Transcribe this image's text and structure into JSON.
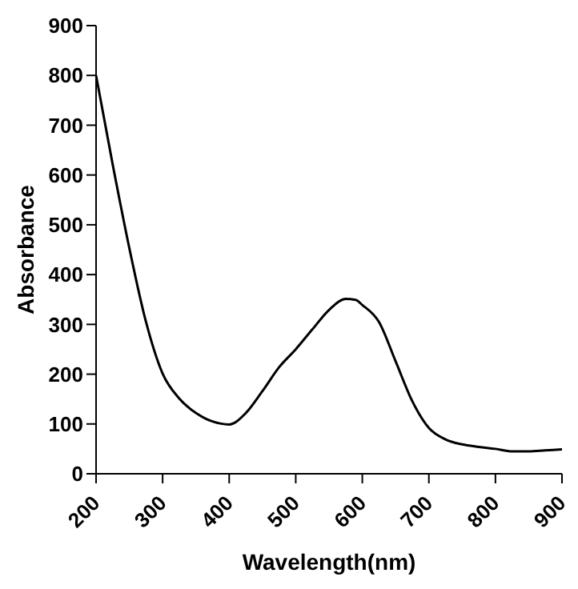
{
  "chart_data": {
    "type": "line",
    "xlabel": "Wavelength(nm)",
    "ylabel": "Absorbance",
    "x": [
      200,
      225,
      250,
      275,
      300,
      325,
      350,
      375,
      400,
      425,
      450,
      475,
      500,
      525,
      550,
      575,
      590,
      600,
      625,
      650,
      675,
      700,
      725,
      750,
      775,
      800,
      825,
      850,
      875,
      900
    ],
    "series": [
      {
        "color": "#000000",
        "values": [
          800,
          621,
          453,
          305,
          201,
          151,
          122,
          105,
          99,
          122,
          166,
          214,
          250,
          290,
          329,
          351,
          349,
          339,
          305,
          226,
          146,
          92,
          69,
          59,
          54,
          50,
          45,
          45,
          47,
          49
        ]
      }
    ],
    "xlim": [
      200,
      900
    ],
    "xticks": [
      200,
      300,
      400,
      500,
      600,
      700,
      800,
      900
    ],
    "ylim": [
      0,
      900
    ],
    "yticks": [
      0,
      100,
      200,
      300,
      400,
      500,
      600,
      700,
      800,
      900
    ],
    "grid": false,
    "legend": false,
    "marker": "none",
    "line_style": "solid"
  }
}
